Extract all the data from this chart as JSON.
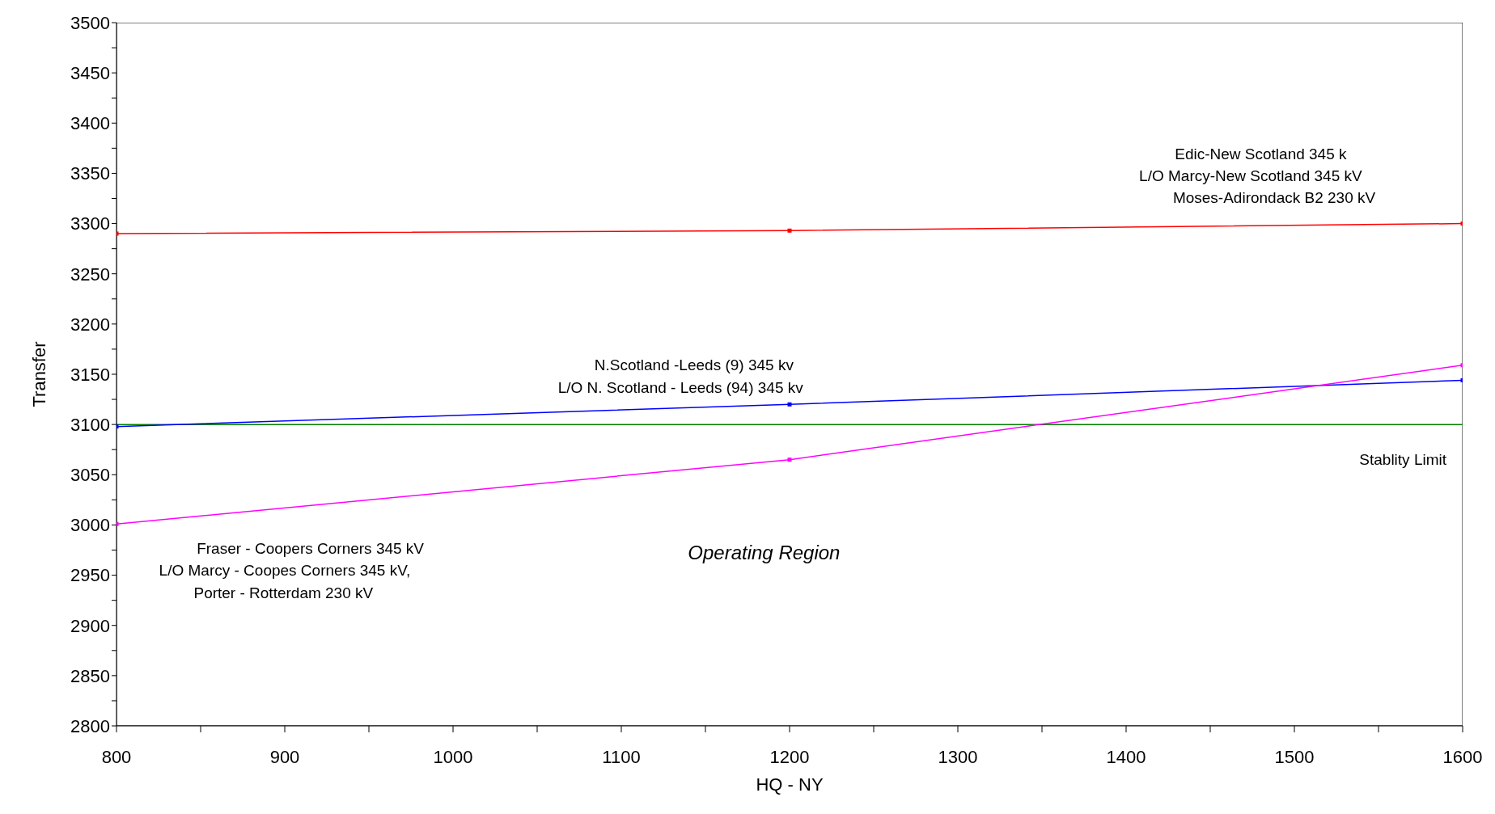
{
  "chart_data": {
    "type": "line",
    "xlabel": "HQ - NY",
    "ylabel": "Transfer",
    "x": [
      800,
      1200,
      1600
    ],
    "series": [
      {
        "color": "#ff0000",
        "values": [
          3290,
          3293,
          3300
        ]
      },
      {
        "color": "#0000ff",
        "values": [
          3098,
          3120,
          3144
        ]
      },
      {
        "color": "#ff00ff",
        "values": [
          3001,
          3065,
          3159
        ]
      }
    ],
    "marker": "square",
    "line_style": "solid",
    "grid": false,
    "legend": false,
    "xlim": [
      800,
      1600
    ],
    "xticks": [
      800,
      {
        "value": 850,
        "label": null
      },
      900,
      {
        "value": 950,
        "label": null
      },
      1000,
      {
        "value": 1050,
        "label": null
      },
      1100,
      {
        "value": 1150,
        "label": null
      },
      1200,
      {
        "value": 1250,
        "label": null
      },
      1300,
      {
        "value": 1350,
        "label": null
      },
      1400,
      {
        "value": 1450,
        "label": null
      },
      1500,
      {
        "value": 1550,
        "label": null
      },
      1600
    ],
    "ylim": [
      2800,
      3500
    ],
    "yticks": [
      2800,
      {
        "value": 2825,
        "label": null
      },
      2850,
      {
        "value": 2875,
        "label": null
      },
      2900,
      {
        "value": 2925,
        "label": null
      },
      2950,
      {
        "value": 2975,
        "label": null
      },
      3000,
      {
        "value": 3025,
        "label": null
      },
      3050,
      {
        "value": 3075,
        "label": null
      },
      3100,
      {
        "value": 3125,
        "label": null
      },
      3150,
      {
        "value": 3175,
        "label": null
      },
      3200,
      {
        "value": 3225,
        "label": null
      },
      3250,
      {
        "value": 3275,
        "label": null
      },
      3300,
      {
        "value": 3325,
        "label": null
      },
      3350,
      {
        "value": 3375,
        "label": null
      },
      3400,
      {
        "value": 3425,
        "label": null
      },
      3450,
      {
        "value": 3475,
        "label": null
      },
      3500
    ],
    "ref_lines": [
      {
        "axis": "y",
        "value": 3100,
        "label": "Stablity Limit",
        "color": "#008000"
      }
    ],
    "annotations": [
      "Edic-New Scotland 345 k",
      "L/O Marcy-New Scotland 345 kV",
      "Moses-Adirondack B2 230 kV",
      "N.Scotland -Leeds (9) 345 kv",
      "L/O N. Scotland - Leeds (94) 345 kv",
      "Fraser - Coopers Corners 345 kV",
      "L/O Marcy - Coopes Corners 345 kV,",
      "Porter - Rotterdam 230 kV",
      "Operating Region"
    ]
  }
}
